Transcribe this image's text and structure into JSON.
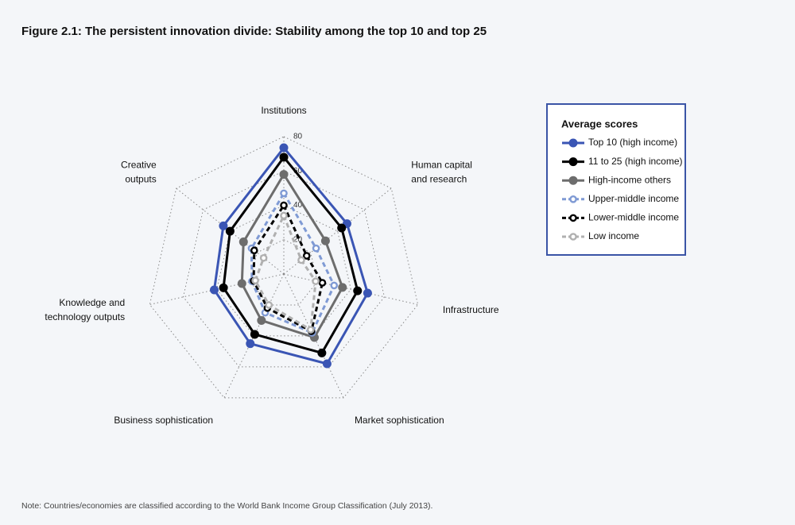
{
  "chart_data": {
    "type": "radar",
    "title": "Figure 2.1: The persistent innovation divide: Stability among the top 10 and top 25",
    "note": "Note: Countries/economies are classified according to the World Bank Income Group Classification (July 2013).",
    "legend_title": "Average scores",
    "categories": [
      [
        "Institutions"
      ],
      [
        "Human capital",
        "and research"
      ],
      [
        "Infrastructure"
      ],
      [
        "Market sophistication"
      ],
      [
        "Business sophistication"
      ],
      [
        "Knowledge and",
        "technology outputs"
      ],
      [
        "Creative",
        "outputs"
      ]
    ],
    "rlim": [
      0,
      80
    ],
    "rticks": [
      20,
      40,
      60,
      80
    ],
    "grid": true,
    "series": [
      {
        "name": "Top 10 (high income)",
        "color": "#3a55b4",
        "dashed": false,
        "marker": "filled",
        "values": [
          73.5,
          47,
          50,
          58,
          45,
          41.5,
          45
        ]
      },
      {
        "name": "11 to 25 (high income)",
        "color": "#000000",
        "dashed": false,
        "marker": "filled",
        "values": [
          68,
          43,
          44,
          51,
          39,
          36,
          40
        ]
      },
      {
        "name": "High-income others",
        "color": "#6d6d6d",
        "dashed": false,
        "marker": "filled",
        "values": [
          58,
          31,
          35,
          41,
          30,
          25,
          30
        ]
      },
      {
        "name": "Upper-middle income",
        "color": "#7f9ad4",
        "dashed": true,
        "marker": "hollow",
        "values": [
          47,
          24,
          30,
          38,
          25,
          19,
          24
        ]
      },
      {
        "name": "Lower-middle income",
        "color": "#000000",
        "dashed": true,
        "marker": "hollow",
        "values": [
          40,
          17,
          23,
          37,
          22,
          18,
          22
        ]
      },
      {
        "name": "Low income",
        "color": "#b0b0b0",
        "dashed": true,
        "marker": "hollow",
        "values": [
          34,
          13,
          19,
          36,
          20,
          17,
          15
        ]
      }
    ]
  }
}
